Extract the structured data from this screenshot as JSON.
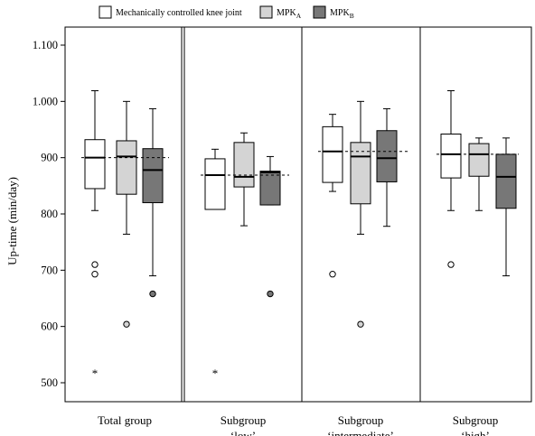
{
  "chart_data": {
    "type": "boxplot",
    "ylabel": "Up-time (min/day)",
    "ylim": [
      480,
      1150
    ],
    "yticks": [
      500,
      600,
      700,
      800,
      900,
      1000,
      1100
    ],
    "ytick_labels": [
      "500",
      "600",
      "700",
      "800",
      "900",
      "1.000",
      "1.100"
    ],
    "legend_position": "top",
    "series": [
      {
        "name": "Mechanically controlled knee joint",
        "base": "",
        "sub": "",
        "fill": "#ffffff"
      },
      {
        "name": "MPKA",
        "base": "MPK",
        "sub": "A",
        "fill": "#d4d4d4"
      },
      {
        "name": "MPKB",
        "base": "MPK",
        "sub": "B",
        "fill": "#777777"
      }
    ],
    "groups": [
      {
        "label_line1": "Total group",
        "label_line2": "",
        "reference": 900,
        "boxes": [
          {
            "whisker_low": 806,
            "q1": 845,
            "median": 900,
            "q3": 932,
            "whisker_high": 1019,
            "outliers": [
              710,
              693
            ],
            "extremes": [
              518
            ]
          },
          {
            "whisker_low": 764,
            "q1": 835,
            "median": 902,
            "q3": 930,
            "whisker_high": 1000,
            "outliers": [
              604
            ],
            "extremes": []
          },
          {
            "whisker_low": 690,
            "q1": 820,
            "median": 878,
            "q3": 916,
            "whisker_high": 987,
            "outliers": [
              658
            ],
            "extremes": []
          }
        ]
      },
      {
        "label_line1": "Subgroup",
        "label_line2": "‘low’",
        "reference": 869,
        "boxes": [
          {
            "whisker_low": 808,
            "q1": 808,
            "median": 869,
            "q3": 898,
            "whisker_high": 915,
            "outliers": [],
            "extremes": [
              518
            ]
          },
          {
            "whisker_low": 779,
            "q1": 848,
            "median": 866,
            "q3": 927,
            "whisker_high": 944,
            "outliers": [],
            "extremes": []
          },
          {
            "whisker_low": 816,
            "q1": 816,
            "median": 874,
            "q3": 876,
            "whisker_high": 902,
            "outliers": [
              658
            ],
            "extremes": []
          }
        ]
      },
      {
        "label_line1": "Subgroup",
        "label_line2": "‘intermediate’",
        "reference": 911,
        "boxes": [
          {
            "whisker_low": 840,
            "q1": 856,
            "median": 911,
            "q3": 955,
            "whisker_high": 977,
            "outliers": [
              693
            ],
            "extremes": []
          },
          {
            "whisker_low": 764,
            "q1": 818,
            "median": 902,
            "q3": 927,
            "whisker_high": 1000,
            "outliers": [
              604
            ],
            "extremes": []
          },
          {
            "whisker_low": 778,
            "q1": 857,
            "median": 899,
            "q3": 948,
            "whisker_high": 987,
            "outliers": [],
            "extremes": []
          }
        ]
      },
      {
        "label_line1": "Subgroup",
        "label_line2": "‘high’",
        "reference": 906,
        "boxes": [
          {
            "whisker_low": 806,
            "q1": 864,
            "median": 906,
            "q3": 942,
            "whisker_high": 1019,
            "outliers": [
              710
            ],
            "extremes": []
          },
          {
            "whisker_low": 806,
            "q1": 867,
            "median": 906,
            "q3": 925,
            "whisker_high": 935,
            "outliers": [],
            "extremes": []
          },
          {
            "whisker_low": 690,
            "q1": 810,
            "median": 866,
            "q3": 906,
            "whisker_high": 935,
            "outliers": [],
            "extremes": []
          }
        ]
      }
    ]
  }
}
